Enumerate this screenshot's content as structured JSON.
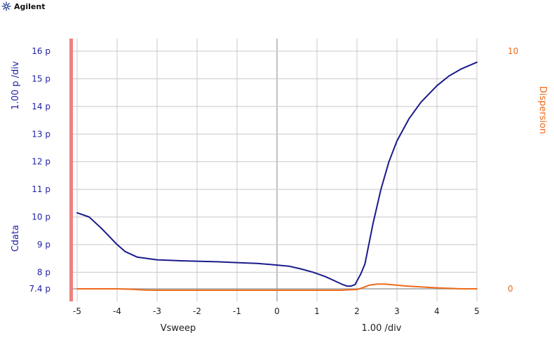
{
  "header": {
    "logo_icon": "agilent-spark-icon",
    "brand_text": "Agilent"
  },
  "colors": {
    "left_axis": "#1f1fa8",
    "right_axis": "#ee6a1a",
    "series_c": "#1a1a8c",
    "series_d": "#ee6a1a",
    "grid": "#c8c8c8",
    "zero_line": "#a0a0a0",
    "axis_marker": "#f08080",
    "text": "#202020"
  },
  "chart_data": {
    "type": "line",
    "xlabel": "Vsweep",
    "xscale_label": "1.00  /div",
    "ylabel": "Cdata",
    "yscale_label": "1.00 p /div",
    "y2label": "Dispersion",
    "xlim": [
      -5,
      5
    ],
    "ylim": [
      7.4,
      16
    ],
    "y2lim": [
      0,
      10
    ],
    "x_ticks": [
      "-5",
      "-4",
      "-3",
      "-2",
      "-1",
      "0",
      "1",
      "2",
      "3",
      "4",
      "5"
    ],
    "y_ticks": [
      {
        "v": 16,
        "label": "16 p"
      },
      {
        "v": 15,
        "label": "15 p"
      },
      {
        "v": 14,
        "label": "14 p"
      },
      {
        "v": 13,
        "label": "13 p"
      },
      {
        "v": 12,
        "label": "12 p"
      },
      {
        "v": 11,
        "label": "11 p"
      },
      {
        "v": 10,
        "label": "10 p"
      },
      {
        "v": 9,
        "label": "9 p"
      },
      {
        "v": 8,
        "label": "8 p"
      },
      {
        "v": 7.4,
        "label": "7.4 p"
      }
    ],
    "y2_ticks": [
      {
        "v": 10,
        "label": "10"
      },
      {
        "v": 0,
        "label": "0"
      }
    ],
    "series": [
      {
        "axis": "left",
        "x": [
          -5,
          -4.7,
          -4.4,
          -4.2,
          -4.0,
          -3.8,
          -3.5,
          -3.0,
          -2.5,
          -2.0,
          -1.5,
          -1.0,
          -0.5,
          0.0,
          0.3,
          0.6,
          0.9,
          1.2,
          1.5,
          1.65,
          1.75,
          1.85,
          1.95,
          2.1,
          2.2,
          2.4,
          2.6,
          2.8,
          3.0,
          3.3,
          3.6,
          4.0,
          4.3,
          4.6,
          5.0
        ],
        "y": [
          10.15,
          10.0,
          9.6,
          9.3,
          9.0,
          8.75,
          8.55,
          8.45,
          8.42,
          8.4,
          8.38,
          8.35,
          8.32,
          8.26,
          8.22,
          8.12,
          8.0,
          7.85,
          7.65,
          7.55,
          7.5,
          7.5,
          7.55,
          7.95,
          8.3,
          9.75,
          11.0,
          12.0,
          12.75,
          13.55,
          14.15,
          14.75,
          15.1,
          15.35,
          15.6
        ]
      },
      {
        "axis": "right",
        "x": [
          -5,
          -4.0,
          -3.6,
          -3.3,
          -3.0,
          -2.0,
          -1.0,
          0.0,
          1.0,
          1.6,
          1.8,
          2.0,
          2.15,
          2.3,
          2.5,
          2.7,
          2.9,
          3.2,
          3.6,
          4.0,
          4.3,
          4.6,
          5.0
        ],
        "y": [
          0.0,
          0.0,
          -0.02,
          -0.05,
          -0.06,
          -0.06,
          -0.06,
          -0.06,
          -0.06,
          -0.06,
          -0.04,
          -0.03,
          0.05,
          0.15,
          0.2,
          0.2,
          0.17,
          0.12,
          0.08,
          0.04,
          0.02,
          0.0,
          0.0
        ]
      }
    ]
  }
}
